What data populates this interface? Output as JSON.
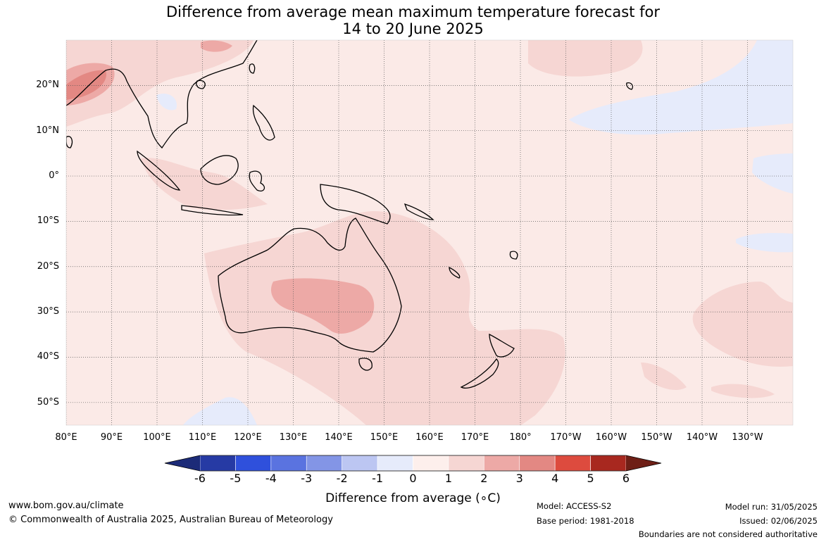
{
  "title": {
    "line1": "Difference from average mean maximum temperature forecast for",
    "line2": "14 to 20 June 2025"
  },
  "map": {
    "lat_labels": [
      "20°N",
      "10°N",
      "0°",
      "10°S",
      "20°S",
      "30°S",
      "40°S",
      "50°S"
    ],
    "lon_labels": [
      "80°E",
      "90°E",
      "100°E",
      "110°E",
      "120°E",
      "130°E",
      "140°E",
      "150°E",
      "160°E",
      "170°E",
      "180°",
      "170°W",
      "160°W",
      "150°W",
      "140°W",
      "130°W"
    ],
    "lat_values": [
      20,
      10,
      0,
      -10,
      -20,
      -30,
      -40,
      -50
    ],
    "lon_values": [
      80,
      90,
      100,
      110,
      120,
      130,
      140,
      150,
      160,
      170,
      180,
      190,
      200,
      210,
      220,
      230
    ],
    "extent": {
      "lon": [
        80,
        240
      ],
      "lat": [
        -55,
        30
      ]
    },
    "background_color": "#fbeae7",
    "anomaly_regions": [
      {
        "name": "central-australia-warm",
        "category": "2 to 3",
        "color": "#eda9a6"
      },
      {
        "name": "australia-tasman-warm",
        "category": "1 to 2",
        "color": "#f6d6d3"
      },
      {
        "name": "bay-of-bengal-warm",
        "category": "3 to 4",
        "color": "#e38883"
      },
      {
        "name": "north-pacific-cool",
        "category": "-1 to 0",
        "color": "#e6ebfb"
      },
      {
        "name": "indochina-cool",
        "category": "-1 to 0",
        "color": "#e6ebfb"
      },
      {
        "name": "south-pacific-warm",
        "category": "1 to 2",
        "color": "#f6d6d3"
      }
    ]
  },
  "colorbar": {
    "labels": [
      "-6",
      "-5",
      "-4",
      "-3",
      "-2",
      "-1",
      "0",
      "1",
      "2",
      "3",
      "4",
      "5",
      "6"
    ],
    "colors": [
      "#263aa4",
      "#2f50dc",
      "#5a73e0",
      "#8395e6",
      "#bcc6f2",
      "#e6ebfb",
      "#fdefec",
      "#f6d6d3",
      "#eda9a6",
      "#e38883",
      "#dd4b3e",
      "#a8281f"
    ],
    "extend_low_color": "#1c2b78",
    "extend_high_color": "#6e1f16",
    "title": "Difference from average (∘C)"
  },
  "footer": {
    "website": "www.bom.gov.au/climate",
    "copyright": "© Commonwealth of Australia 2025, Australian Bureau of Meteorology",
    "model": "Model: ACCESS-S2",
    "base_period": "Base period: 1981-2018",
    "model_run": "Model run: 31/05/2025",
    "issued": "Issued: 02/06/2025",
    "disclaimer": "Boundaries are not considered authoritative"
  }
}
